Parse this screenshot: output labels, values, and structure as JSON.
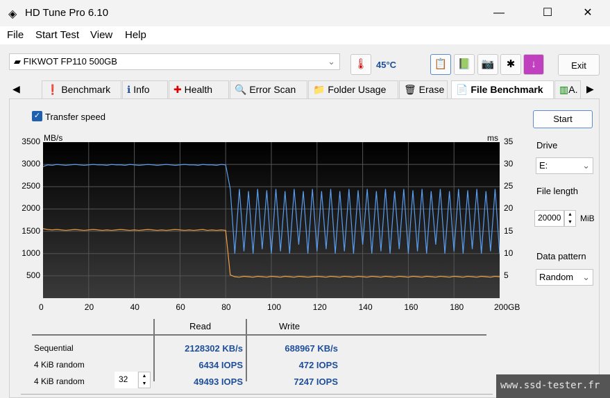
{
  "window": {
    "title": "HD Tune Pro 6.10",
    "minimize": "—",
    "maximize": "☐",
    "close": "✕"
  },
  "menu": [
    "File",
    "Start Test",
    "View",
    "Help"
  ],
  "drive": {
    "name": "FIKWOT FP110 500GB",
    "temperature": "45°C"
  },
  "toolbar": {
    "exit": "Exit"
  },
  "tabs": [
    "Benchmark",
    "Info",
    "Health",
    "Error Scan",
    "Folder Usage",
    "Erase",
    "File Benchmark",
    "A."
  ],
  "active_tab": "File Benchmark",
  "options": {
    "transfer_speed_label": "Transfer speed",
    "transfer_speed_checked": true,
    "start": "Start",
    "drive_label": "Drive",
    "drive_value": "E:",
    "file_length_label": "File length",
    "file_length_value": "20000",
    "file_length_unit": "MiB",
    "data_pattern_label": "Data pattern",
    "data_pattern_value": "Random"
  },
  "results": {
    "col_read": "Read",
    "col_write": "Write",
    "rows": [
      {
        "label": "Sequential",
        "read": "2128302 KB/s",
        "write": "688967 KB/s"
      },
      {
        "label": "4 KiB random",
        "read": "6434 IOPS",
        "write": "472 IOPS"
      },
      {
        "label": "4 KiB random",
        "queue": "32",
        "read": "49493 IOPS",
        "write": "7247 IOPS"
      }
    ]
  },
  "watermark": "www.ssd-tester.fr",
  "chart_data": {
    "type": "line",
    "ylabel": "MB/s",
    "y2label": "ms",
    "xlim": [
      0,
      200
    ],
    "ylim": [
      0,
      3500
    ],
    "y2lim": [
      0,
      35
    ],
    "xticks": [
      "0",
      "20",
      "40",
      "60",
      "80",
      "100",
      "120",
      "140",
      "160",
      "180",
      "200GB"
    ],
    "yticks": [
      "500",
      "1000",
      "1500",
      "2000",
      "2500",
      "3000",
      "3500"
    ],
    "y2ticks": [
      "5",
      "10",
      "15",
      "20",
      "25",
      "30",
      "35"
    ],
    "grid": true,
    "x_step": 2,
    "series": [
      {
        "color": "#5a9ef0",
        "values": [
          2950,
          2990,
          2980,
          3000,
          2990,
          2980,
          2990,
          3000,
          2990,
          2980,
          2990,
          3000,
          2990,
          2990,
          2980,
          3000,
          2990,
          2990,
          2980,
          3000,
          2990,
          2980,
          2990,
          3000,
          2990,
          2980,
          2990,
          3000,
          2990,
          2980,
          2990,
          3000,
          2990,
          2990,
          2980,
          3000,
          2990,
          2990,
          2980,
          3000,
          2990,
          2450,
          1000,
          2450,
          1050,
          2400,
          1000,
          2450,
          1100,
          2420,
          1000,
          2450,
          1050,
          2400,
          1000,
          2450,
          1200,
          2400,
          1000,
          2450,
          1050,
          2400,
          1100,
          2450,
          1000,
          2400,
          1050,
          2450,
          1000,
          2420,
          1200,
          2450,
          1000,
          2400,
          1050,
          2450,
          1000,
          2400,
          1100,
          2450,
          1000,
          2420,
          1050,
          2450,
          1000,
          2400,
          1200,
          2450,
          1000,
          2400,
          1050,
          2450,
          1000,
          2420,
          1100,
          2450,
          1000,
          2400,
          1050,
          2450,
          1000
        ]
      },
      {
        "color": "#f0a040",
        "values": [
          1560,
          1540,
          1530,
          1540,
          1530,
          1520,
          1530,
          1540,
          1530,
          1520,
          1530,
          1540,
          1530,
          1520,
          1530,
          1520,
          1530,
          1540,
          1530,
          1520,
          1530,
          1520,
          1530,
          1540,
          1530,
          1520,
          1530,
          1520,
          1530,
          1540,
          1530,
          1520,
          1530,
          1520,
          1530,
          1540,
          1520,
          1530,
          1520,
          1530,
          1520,
          520,
          480,
          470,
          490,
          480,
          470,
          490,
          480,
          470,
          490,
          480,
          470,
          490,
          480,
          470,
          490,
          480,
          470,
          480,
          490,
          480,
          470,
          490,
          480,
          470,
          490,
          480,
          470,
          490,
          480,
          470,
          490,
          480,
          470,
          490,
          480,
          470,
          490,
          480,
          470,
          490,
          480,
          470,
          490,
          480,
          470,
          490,
          480,
          470,
          490,
          480,
          470,
          490,
          480,
          470,
          490,
          480,
          470,
          490,
          480,
          490
        ]
      }
    ]
  }
}
